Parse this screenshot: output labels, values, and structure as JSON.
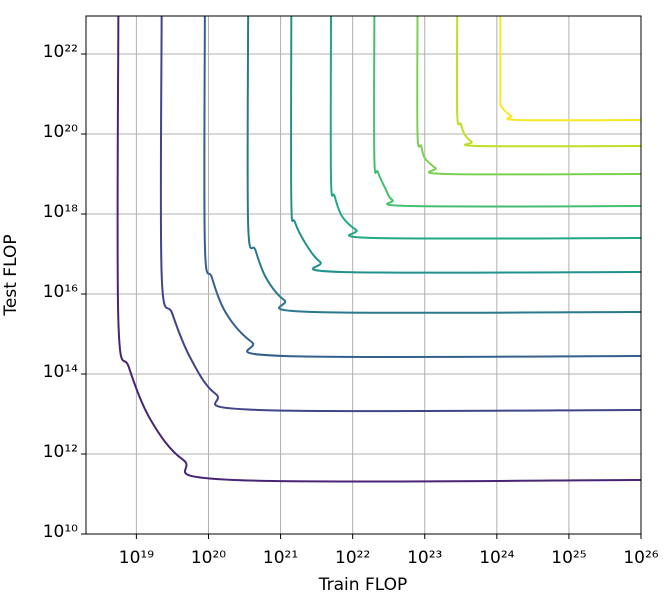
{
  "chart_data": {
    "type": "contour",
    "x_label": "Train FLOP",
    "y_label": "Test FLOP",
    "log_x": true,
    "log_y": true,
    "grid": true,
    "xlim": [
      2e+18,
      1e+26
    ],
    "ylim": [
      10000000000.0,
      8.91e+22
    ],
    "xticks": [
      {
        "value": 1e+19,
        "label": "10¹⁹"
      },
      {
        "value": 1e+20,
        "label": "10²⁰"
      },
      {
        "value": 1e+21,
        "label": "10²¹"
      },
      {
        "value": 1e+22,
        "label": "10²²"
      },
      {
        "value": 1e+23,
        "label": "10²³"
      },
      {
        "value": 1e+24,
        "label": "10²⁴"
      },
      {
        "value": 1e+25,
        "label": "10²⁵"
      },
      {
        "value": 1e+26,
        "label": "10²⁶"
      }
    ],
    "yticks": [
      {
        "value": 10000000000.0,
        "label": "10¹⁰"
      },
      {
        "value": 1000000000000.0,
        "label": "10¹²"
      },
      {
        "value": 100000000000000.0,
        "label": "10¹⁴"
      },
      {
        "value": 1e+16,
        "label": "10¹⁶"
      },
      {
        "value": 1e+18,
        "label": "10¹⁸"
      },
      {
        "value": 1e+20,
        "label": "10²⁰"
      },
      {
        "value": 1e+22,
        "label": "10²²"
      }
    ],
    "series": [
      {
        "color": "#482475",
        "x": [
          5.62e+18,
          5.62e+18,
          7.94e+18,
          1.58e+19,
          4.47e+19,
          2.24e+20,
          1e+26
        ],
        "values": [
          8.91e+22,
          2240000000000000.0,
          141000000000000.0,
          7080000000000.0,
          708000000000.0,
          224000000000.0,
          224000000000.0
        ]
      },
      {
        "color": "#414487",
        "x": [
          2.24e+19,
          2.24e+19,
          3.16e+19,
          5.62e+19,
          1.26e+20,
          5.01e+20,
          1e+26
        ],
        "values": [
          8.91e+22,
          3.16e+16,
          3160000000000000.0,
          251000000000000.0,
          31600000000000.0,
          12600000000000.0,
          12600000000000.0
        ]
      },
      {
        "color": "#355f8d",
        "x": [
          8.91e+19,
          8.91e+19,
          1.12e+20,
          1.78e+20,
          3.98e+20,
          1.12e+21,
          1e+26
        ],
        "values": [
          8.91e+22,
          1.78e+17,
          2.51e+16,
          3160000000000000.0,
          631000000000000.0,
          282000000000000.0,
          282000000000000.0
        ]
      },
      {
        "color": "#2a788e",
        "x": [
          3.55e+20,
          3.55e+20,
          4.47e+20,
          6.31e+20,
          1.12e+21,
          2.82e+21,
          1e+26
        ],
        "values": [
          8.91e+22,
          5.62e+17,
          1.26e+17,
          2.51e+16,
          7080000000000000.0,
          3550000000000000.0,
          3550000000000000.0
        ]
      },
      {
        "color": "#21918c",
        "x": [
          1.41e+21,
          1.41e+21,
          1.58e+21,
          2.24e+21,
          3.55e+21,
          7.08e+21,
          1e+26
        ],
        "values": [
          8.91e+22,
          2.24e+18,
          6.31e+17,
          1.78e+17,
          6.31e+16,
          3.55e+16,
          3.55e+16
        ]
      },
      {
        "color": "#22a884",
        "x": [
          5.01e+21,
          5.01e+21,
          5.62e+21,
          7.08e+21,
          1.12e+22,
          2e+22,
          1e+26
        ],
        "values": [
          8.91e+22,
          7.94e+18,
          2.82e+18,
          8.91e+17,
          3.98e+17,
          2.51e+17,
          2.51e+17
        ]
      },
      {
        "color": "#44bf70",
        "x": [
          2e+22,
          2e+22,
          2.24e+22,
          2.82e+22,
          3.55e+22,
          6.31e+22,
          1e+26
        ],
        "values": [
          8.91e+22,
          2.51e+19,
          1.12e+19,
          4.47e+18,
          2.24e+18,
          1.58e+18,
          1.58e+18
        ]
      },
      {
        "color": "#7ad151",
        "x": [
          7.94e+22,
          7.94e+22,
          8.91e+22,
          1e+23,
          1.41e+23,
          2e+23,
          1e+26
        ],
        "values": [
          8.91e+22,
          1e+20,
          5.01e+19,
          2.51e+19,
          1.41e+19,
          1e+19,
          1e+19
        ]
      },
      {
        "color": "#bddf26",
        "x": [
          2.82e+23,
          2.82e+23,
          3.16e+23,
          3.55e+23,
          4.47e+23,
          5.62e+23,
          1e+26
        ],
        "values": [
          8.91e+22,
          3.16e+20,
          1.78e+20,
          1e+20,
          6.31e+19,
          5.01e+19,
          5.01e+19
        ]
      },
      {
        "color": "#fde725",
        "x": [
          1.12e+24,
          1.12e+24,
          1.12e+24,
          1.26e+24,
          1.58e+24,
          2e+24,
          1e+26
        ],
        "values": [
          8.91e+22,
          8.91e+20,
          5.62e+20,
          3.98e+20,
          2.82e+20,
          2.24e+20,
          2.24e+20
        ]
      }
    ]
  }
}
